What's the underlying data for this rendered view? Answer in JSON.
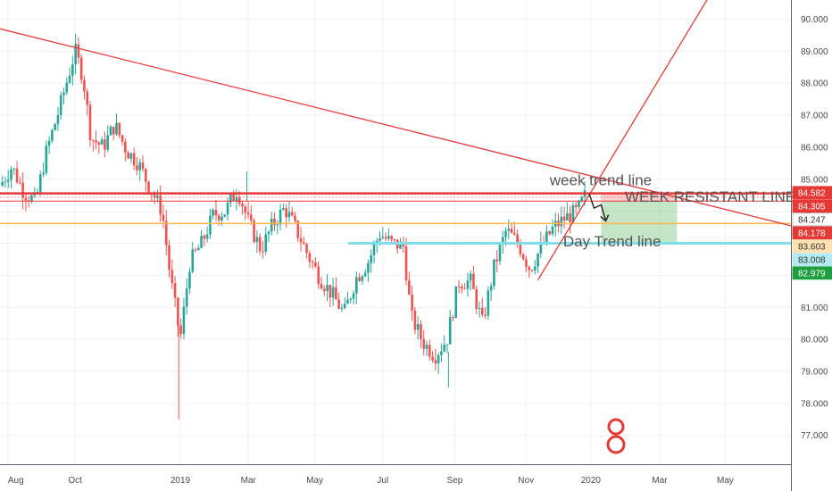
{
  "chart_data": {
    "type": "candlestick",
    "x_labels": [
      "Aug",
      "Oct",
      "2019",
      "Mar",
      "May",
      "Jul",
      "Sep",
      "Nov",
      "2020",
      "Mar",
      "May"
    ],
    "y_ticks": [
      77,
      78,
      79,
      80,
      81,
      82,
      83,
      84,
      85,
      86,
      87,
      88,
      89,
      90
    ],
    "y_tick_labels": [
      "77.000",
      "78.000",
      "79.000",
      "80.000",
      "81.000",
      "82.000",
      "83.000",
      "84.000",
      "85.000",
      "86.000",
      "87.000",
      "88.000",
      "89.000",
      "90.000"
    ],
    "ylim": [
      76.1,
      90.6
    ],
    "xlim": [
      0,
      100
    ],
    "grid": true,
    "price_labels": [
      {
        "text": "84.582",
        "value": 84.582,
        "bg": "#e53935",
        "fg": "#ffffff"
      },
      {
        "text": "84.305",
        "value": 84.305,
        "bg": "#e53935",
        "fg": "#ffffff"
      },
      {
        "text": "84.247",
        "value": 84.247,
        "bg": "#ffffff",
        "fg": "#333333"
      },
      {
        "text": "84.178",
        "value": 84.178,
        "bg": "#e53935",
        "fg": "#ffffff"
      },
      {
        "text": "83.603",
        "value": 83.603,
        "bg": "#ffe0b2",
        "fg": "#333333"
      },
      {
        "text": "83.008",
        "value": 83.008,
        "bg": "#b2ebf2",
        "fg": "#333333"
      },
      {
        "text": "82.979",
        "value": 82.979,
        "bg": "#1e9e3e",
        "fg": "#ffffff"
      }
    ],
    "annotations": [
      {
        "text": "week trend line",
        "x": 69.5,
        "y": 84.82
      },
      {
        "text": "WEEK RESISTANT LINE",
        "x": 79,
        "y": 84.3
      },
      {
        "text": "Day Trend line",
        "x": 71.2,
        "y": 82.9
      }
    ],
    "trend_lines": [
      {
        "name": "week trend line",
        "color": "#e53935",
        "x1": 0,
        "y1": 89.7,
        "x2": 100,
        "y2": 83.55
      },
      {
        "name": "rising trend",
        "color": "#e53935",
        "x1": 68,
        "y1": 81.85,
        "x2": 89.5,
        "y2": 90.65
      }
    ],
    "horizontal_lines": [
      {
        "name": "WEEK RESISTANT LINE",
        "y": 84.56,
        "x1": 0,
        "x2": 100,
        "color": "#e53935",
        "width": 2.5
      },
      {
        "name": "resistance second",
        "y": 84.32,
        "x1": 0,
        "x2": 100,
        "color": "#e53935",
        "width": 1
      },
      {
        "name": "support line",
        "y": 83.62,
        "x1": 0,
        "x2": 100,
        "color": "#ffb74d",
        "width": 1.5
      },
      {
        "name": "day support",
        "y": 83.0,
        "x1": 44,
        "x2": 100,
        "color": "#80deea",
        "width": 3
      }
    ],
    "position_box": {
      "x1": 76,
      "x2": 85.6,
      "entry": 84.3,
      "stop": 84.6,
      "target": 83.03
    },
    "series": [
      {
        "name": "price",
        "color_up": "#26a69a",
        "color_down": "#ef5350",
        "anchors": [
          [
            0,
            84.8
          ],
          [
            1.5,
            85.4
          ],
          [
            3,
            84.6
          ],
          [
            4.5,
            84.3
          ],
          [
            5.8,
            85.8
          ],
          [
            7.5,
            87.2
          ],
          [
            9.5,
            89.0
          ],
          [
            10.5,
            88.2
          ],
          [
            11.5,
            86.3
          ],
          [
            13,
            86.0
          ],
          [
            14.5,
            86.7
          ],
          [
            16,
            85.9
          ],
          [
            17.5,
            85.5
          ],
          [
            19,
            84.7
          ],
          [
            20.5,
            84.0
          ],
          [
            21.5,
            82.0
          ],
          [
            22.8,
            80.0
          ],
          [
            24,
            82.4
          ],
          [
            25.5,
            83.0
          ],
          [
            27,
            83.9
          ],
          [
            28.5,
            84.0
          ],
          [
            30,
            84.7
          ],
          [
            31.5,
            83.6
          ],
          [
            33,
            82.8
          ],
          [
            34.5,
            83.6
          ],
          [
            36,
            84.1
          ],
          [
            37.5,
            83.4
          ],
          [
            39,
            82.6
          ],
          [
            40.5,
            81.9
          ],
          [
            42,
            81.4
          ],
          [
            43.5,
            80.8
          ],
          [
            45,
            81.9
          ],
          [
            46.5,
            82.4
          ],
          [
            48,
            83.3
          ],
          [
            49.5,
            83.0
          ],
          [
            51,
            82.9
          ],
          [
            52,
            80.7
          ],
          [
            53.5,
            79.9
          ],
          [
            55,
            79.5
          ],
          [
            56.5,
            80.0
          ],
          [
            58,
            81.8
          ],
          [
            59.5,
            81.8
          ],
          [
            61,
            80.5
          ],
          [
            62.5,
            82.3
          ],
          [
            64,
            83.4
          ],
          [
            65.5,
            83.0
          ],
          [
            67,
            82.2
          ],
          [
            68.5,
            82.9
          ],
          [
            70,
            83.5
          ],
          [
            71.5,
            83.8
          ],
          [
            73,
            84.0
          ],
          [
            74,
            84.5
          ]
        ]
      }
    ]
  }
}
